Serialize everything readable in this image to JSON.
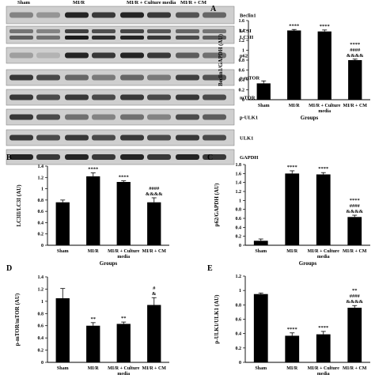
{
  "blot": {
    "lane_labels": [
      "Sham",
      "MI/R",
      "MI/R + Culture media",
      "MI/R + CM"
    ],
    "proteins": [
      "Beclin1",
      "LC3I\nLC3II",
      "p62",
      "p-mTOR",
      "mTOR",
      "p-ULK1",
      "ULK1",
      "GAPDH"
    ]
  },
  "chart_data": [
    {
      "panel": "A",
      "type": "bar",
      "categories": [
        "Sham",
        "MI/R",
        "MI/R + Culture\nmedia",
        "MI/R + CM"
      ],
      "values": [
        0.33,
        1.4,
        1.38,
        0.8
      ],
      "errors": [
        0.05,
        0.02,
        0.03,
        0.02
      ],
      "annotations": [
        "",
        "****",
        "****",
        "****\n####\n&&&&"
      ],
      "ylabel": "Beclin1/GAPDH (AU)",
      "xlabel": "Groups",
      "ylim": [
        0,
        1.6
      ],
      "yticks": [
        "0",
        "0.2",
        "0.4",
        "0.6",
        "0.8",
        "1",
        "1.2",
        "1.4",
        "1.6"
      ]
    },
    {
      "panel": "B",
      "type": "bar",
      "categories": [
        "Sham",
        "MI/R",
        "MI/R + Culture\nmedia",
        "MI/R + CM"
      ],
      "values": [
        0.76,
        1.22,
        1.12,
        0.76
      ],
      "errors": [
        0.04,
        0.06,
        0.02,
        0.08
      ],
      "annotations": [
        "",
        "****",
        "****",
        "####\n&&&&"
      ],
      "ylabel": "LC3II/LC3I (AU)",
      "xlabel": "Groups",
      "ylim": [
        0,
        1.4
      ],
      "yticks": [
        "0",
        "0.2",
        "0.4",
        "0.6",
        "0.8",
        "1",
        "1.2",
        "1.4"
      ]
    },
    {
      "panel": "C",
      "type": "bar",
      "categories": [
        "Sham",
        "MI/R",
        "MI/R + Culture\nmedia",
        "MI/R + CM"
      ],
      "values": [
        0.1,
        1.6,
        1.58,
        0.63
      ],
      "errors": [
        0.04,
        0.06,
        0.04,
        0.04
      ],
      "annotations": [
        "",
        "****",
        "****",
        "****\n####\n&&&&"
      ],
      "ylabel": "p62/GAPDH (AU)",
      "xlabel": "Groups",
      "ylim": [
        0,
        1.8
      ],
      "yticks": [
        "0",
        "0.2",
        "0.4",
        "0.6",
        "0.8",
        "1",
        "1.2",
        "1.4",
        "1.6",
        "1.8"
      ]
    },
    {
      "panel": "D",
      "type": "bar",
      "categories": [
        "Sham",
        "MI/R",
        "MI/R + Culture\nmedia",
        "MI/R + CM"
      ],
      "values": [
        1.05,
        0.6,
        0.63,
        0.94
      ],
      "errors": [
        0.16,
        0.05,
        0.03,
        0.12
      ],
      "annotations": [
        "",
        "**",
        "**",
        "#\n&"
      ],
      "ylabel": "p-mTOR/mTOR (AU)",
      "xlabel": "Groups",
      "ylim": [
        0,
        1.4
      ],
      "yticks": [
        "0",
        "0.2",
        "0.4",
        "0.6",
        "0.8",
        "1",
        "1.2",
        "1.4"
      ]
    },
    {
      "panel": "E",
      "type": "bar",
      "categories": [
        "Sham",
        "MI/R",
        "MI/R + Culture\nmedia",
        "MI/R + CM"
      ],
      "values": [
        0.95,
        0.37,
        0.39,
        0.76
      ],
      "errors": [
        0.015,
        0.04,
        0.04,
        0.03
      ],
      "annotations": [
        "",
        "****",
        "****",
        "**\n####\n&&&&"
      ],
      "ylabel": "p-ULK1/ULK1 (AU)",
      "xlabel": "Groups",
      "ylim": [
        0,
        1.2
      ],
      "yticks": [
        "0",
        "0.2",
        "0.4",
        "0.6",
        "0.8",
        "1",
        "1.2"
      ]
    }
  ]
}
